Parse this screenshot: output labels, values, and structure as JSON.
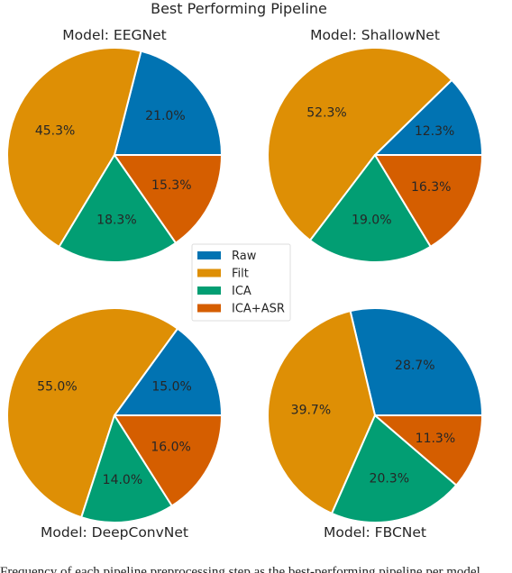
{
  "title": "Best Performing Pipeline",
  "colors": {
    "Raw": "#0173b2",
    "Filt": "#de8f05",
    "ICA": "#029e73",
    "ICA+ASR": "#d55e00"
  },
  "caption_fragment": "Frequency of each pipeline preprocessing step as the best-performing pipeline per model",
  "chart_data": [
    {
      "type": "pie",
      "title": "Model: EEGNet",
      "labels": [
        "Raw",
        "Filt",
        "ICA",
        "ICA+ASR"
      ],
      "values": [
        21.0,
        45.3,
        18.3,
        15.3
      ]
    },
    {
      "type": "pie",
      "title": "Model: ShallowNet",
      "labels": [
        "Raw",
        "Filt",
        "ICA",
        "ICA+ASR"
      ],
      "values": [
        12.3,
        52.3,
        19.0,
        16.3
      ]
    },
    {
      "type": "pie",
      "title": "Model: DeepConvNet",
      "labels": [
        "Raw",
        "Filt",
        "ICA",
        "ICA+ASR"
      ],
      "values": [
        15.0,
        55.0,
        14.0,
        16.0
      ]
    },
    {
      "type": "pie",
      "title": "Model: FBCNet",
      "labels": [
        "Raw",
        "Filt",
        "ICA",
        "ICA+ASR"
      ],
      "values": [
        28.7,
        39.7,
        20.3,
        11.3
      ]
    }
  ],
  "legend": {
    "placement": "center",
    "entries": [
      "Raw",
      "Filt",
      "ICA",
      "ICA+ASR"
    ]
  }
}
